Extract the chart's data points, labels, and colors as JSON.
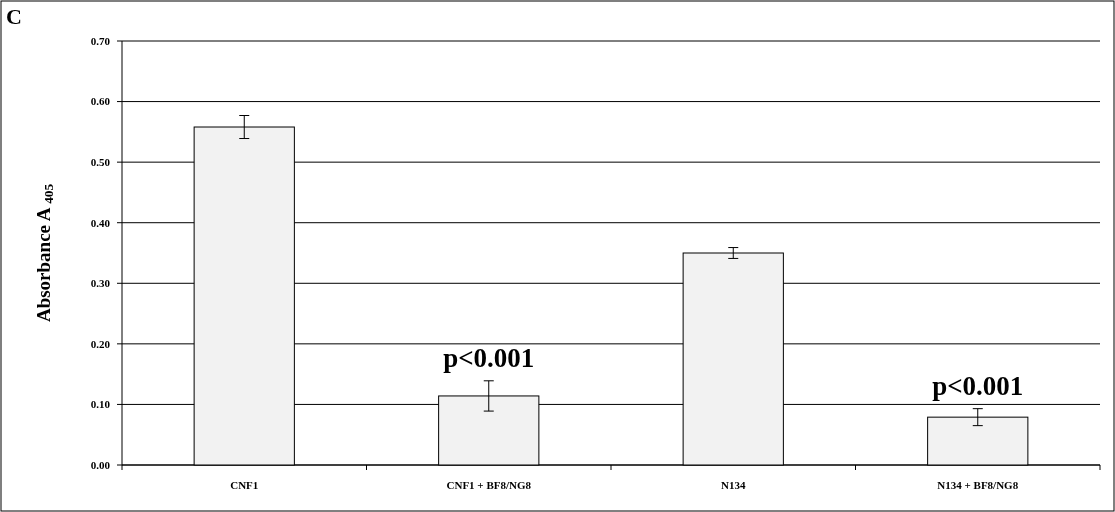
{
  "chart_data": {
    "type": "bar",
    "title": "C",
    "ylabel": "Absorbance A $_{405}$",
    "categories": [
      "CNF1",
      "CNF1 + BF8/NG8",
      "N134",
      "N134 + BF8/NG8"
    ],
    "values": [
      0.558,
      0.114,
      0.35,
      0.079
    ],
    "errors": [
      0.019,
      0.025,
      0.009,
      0.014
    ],
    "color": "#f2f2f2",
    "ylim": [
      0,
      0.7
    ],
    "yticks": [
      {
        "value": 0,
        "label": "0.00"
      },
      {
        "value": 0.1,
        "label": "0.10"
      },
      {
        "value": 0.2,
        "label": "0.20"
      },
      {
        "value": 0.3,
        "label": "0.30"
      },
      {
        "value": 0.4,
        "label": "0.40"
      },
      {
        "value": 0.5,
        "label": "0.50"
      },
      {
        "value": 0.6,
        "label": "0.60"
      },
      {
        "value": 0.7,
        "label": "0.70"
      }
    ],
    "grid": "y",
    "annotations": [
      {
        "text": "p<0.001",
        "x": "CNF1 + BF8/NG8",
        "y": 0.114
      },
      {
        "text": "p<0.001",
        "x": "N134 + BF8/NG8",
        "y": 0.079
      }
    ]
  }
}
